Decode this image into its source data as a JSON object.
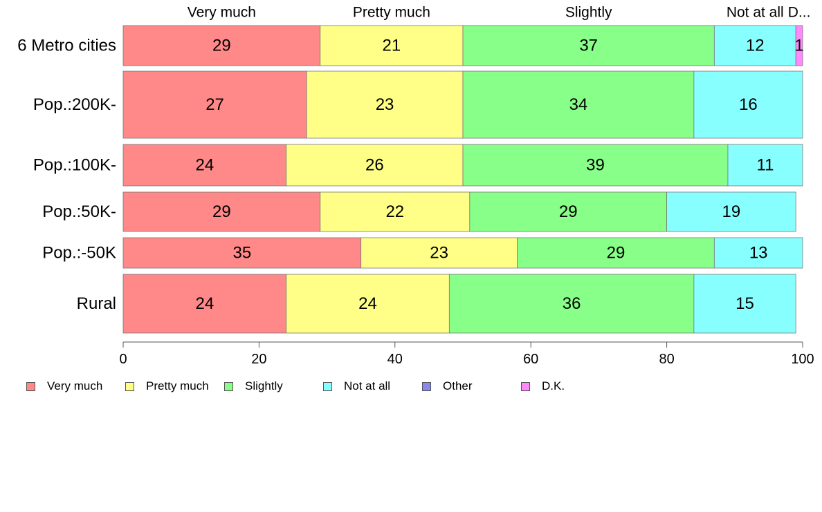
{
  "chart_data": {
    "type": "bar",
    "orientation": "horizontal",
    "stacked": true,
    "categories": [
      "6 Metro cities",
      "Pop.:200K-",
      "Pop.:100K-",
      "Pop.:50K-",
      "Pop.:-50K",
      "Rural"
    ],
    "series": [
      {
        "name": "Very much",
        "values": [
          29,
          27,
          24,
          29,
          35,
          24
        ],
        "labels": [
          "29",
          "27",
          "24",
          "29",
          "35",
          "24"
        ]
      },
      {
        "name": "Pretty much",
        "values": [
          21,
          23,
          26,
          22,
          23,
          24
        ],
        "labels": [
          "21",
          "23",
          "26",
          "22",
          "23",
          "24"
        ]
      },
      {
        "name": "Slightly",
        "values": [
          37,
          34,
          39,
          29,
          29,
          36
        ],
        "labels": [
          "37",
          "34",
          "39",
          "29",
          "29",
          "36"
        ]
      },
      {
        "name": "Not at all",
        "values": [
          12,
          16,
          11,
          19,
          13,
          15
        ],
        "labels": [
          "12",
          "16",
          "11",
          "19",
          "13",
          "15"
        ]
      },
      {
        "name": "Other",
        "values": [
          0,
          0,
          0,
          0,
          0,
          0
        ],
        "labels": [
          "",
          "",
          "",
          "",
          "",
          ""
        ]
      },
      {
        "name": "D.K.",
        "values": [
          1,
          0,
          0,
          0,
          0,
          0
        ],
        "labels": [
          "1",
          "",
          "",
          "",
          "",
          ""
        ]
      }
    ],
    "top_labels": [
      "Very much",
      "Pretty much",
      "Slightly",
      "Not at all",
      "D..."
    ],
    "xlim": [
      0,
      100
    ],
    "xticks": [
      0,
      20,
      40,
      60,
      80,
      100
    ],
    "xtick_labels": [
      "0",
      "20",
      "40",
      "60",
      "80",
      "100"
    ],
    "colors": [
      "#ff8888",
      "#ffff88",
      "#88ff88",
      "#88ffff",
      "#8888ee",
      "#ff88ff"
    ],
    "grid": false,
    "legend_position": "bottom-left"
  },
  "legend": {
    "items": [
      {
        "label": "Very much",
        "color": "#ff8888"
      },
      {
        "label": "Pretty much",
        "color": "#ffff88"
      },
      {
        "label": "Slightly",
        "color": "#88ff88"
      },
      {
        "label": "Not at all",
        "color": "#88ffff"
      },
      {
        "label": "Other",
        "color": "#8888ee"
      },
      {
        "label": "D.K.",
        "color": "#ff88ff"
      }
    ]
  }
}
